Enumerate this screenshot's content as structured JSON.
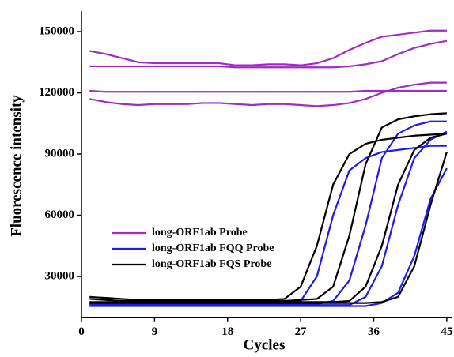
{
  "chart_data": {
    "type": "line",
    "xlabel": "Cycles",
    "ylabel": "Fluorescence intensity",
    "x": [
      1,
      3,
      5,
      7,
      9,
      11,
      13,
      15,
      17,
      19,
      21,
      23,
      25,
      27,
      29,
      31,
      33,
      35,
      37,
      39,
      41,
      43,
      45
    ],
    "xlim": [
      0,
      45.5
    ],
    "xticks": [
      0,
      9,
      18,
      27,
      36,
      45
    ],
    "ylim": [
      10000,
      160000
    ],
    "yticks": [
      30000,
      60000,
      90000,
      120000,
      150000
    ],
    "legend": "left",
    "series": [
      {
        "name": "long-ORF1ab Probe",
        "color": "#a12bc4",
        "lines": [
          [
            140500,
            139000,
            137000,
            135000,
            134500,
            134500,
            134500,
            134500,
            134500,
            133500,
            133500,
            134000,
            134000,
            133500,
            134500,
            137000,
            141000,
            144500,
            147500,
            148500,
            149500,
            150500,
            150500
          ],
          [
            133000,
            133000,
            133000,
            133000,
            133000,
            133000,
            133000,
            133000,
            133000,
            132500,
            132500,
            132500,
            132500,
            132500,
            132500,
            132500,
            133000,
            134000,
            135500,
            139000,
            142000,
            144000,
            145500
          ],
          [
            121000,
            120500,
            120500,
            120500,
            120500,
            120500,
            120500,
            120500,
            120500,
            120500,
            120500,
            120500,
            120500,
            120500,
            120500,
            120500,
            120500,
            121000,
            121000,
            121000,
            121000,
            121000,
            121000
          ],
          [
            117000,
            115500,
            114500,
            114000,
            114500,
            114500,
            114500,
            115000,
            115000,
            114500,
            114000,
            114500,
            114500,
            114000,
            113500,
            114000,
            115000,
            117000,
            120000,
            122500,
            124000,
            125000,
            125000
          ]
        ]
      },
      {
        "name": "long-ORF1ab FQQ Probe",
        "color": "#1c1cf0",
        "lines": [
          [
            17000,
            17000,
            17000,
            17000,
            17000,
            17000,
            17000,
            17000,
            17000,
            17000,
            17000,
            17000,
            17000,
            18000,
            30000,
            60000,
            82000,
            88000,
            91000,
            92000,
            93000,
            94000,
            94000
          ],
          [
            16500,
            16500,
            16500,
            16500,
            16500,
            16500,
            16500,
            16500,
            16500,
            16500,
            16500,
            16500,
            16500,
            16500,
            16500,
            18000,
            28000,
            55000,
            88000,
            100000,
            104000,
            106000,
            106000
          ],
          [
            16000,
            16000,
            16000,
            16000,
            16000,
            16000,
            16000,
            16000,
            16000,
            16000,
            16000,
            16000,
            16000,
            16000,
            16000,
            16000,
            16000,
            20000,
            35000,
            65000,
            88000,
            97000,
            101000
          ],
          [
            15500,
            15500,
            15500,
            15500,
            15500,
            15500,
            15500,
            15500,
            15500,
            15500,
            15500,
            15500,
            15500,
            15500,
            15500,
            15500,
            15500,
            15500,
            17000,
            22000,
            40000,
            68000,
            83000
          ]
        ]
      },
      {
        "name": "long-ORF1ab FQS Probe",
        "color": "#000000",
        "lines": [
          [
            20000,
            19500,
            19000,
            18500,
            18500,
            18500,
            18500,
            18500,
            18500,
            18500,
            18500,
            18500,
            19000,
            25000,
            45000,
            75000,
            90000,
            95000,
            97000,
            98000,
            99000,
            99500,
            100000
          ],
          [
            19000,
            18500,
            18000,
            18000,
            18000,
            18000,
            18000,
            18000,
            18000,
            18000,
            18000,
            18000,
            18000,
            18500,
            19000,
            25000,
            50000,
            85000,
            103000,
            107000,
            108500,
            109500,
            110000
          ],
          [
            17500,
            17500,
            17500,
            17500,
            17500,
            17500,
            17500,
            17500,
            17500,
            17500,
            17500,
            17500,
            17500,
            17500,
            17500,
            17500,
            18000,
            25000,
            45000,
            75000,
            92000,
            98000,
            100000
          ],
          [
            17000,
            17000,
            17000,
            17000,
            17000,
            17000,
            17000,
            17000,
            17000,
            17000,
            17000,
            17000,
            17000,
            17000,
            17000,
            17000,
            17000,
            17000,
            17500,
            20000,
            35000,
            65000,
            91000
          ]
        ]
      }
    ]
  }
}
